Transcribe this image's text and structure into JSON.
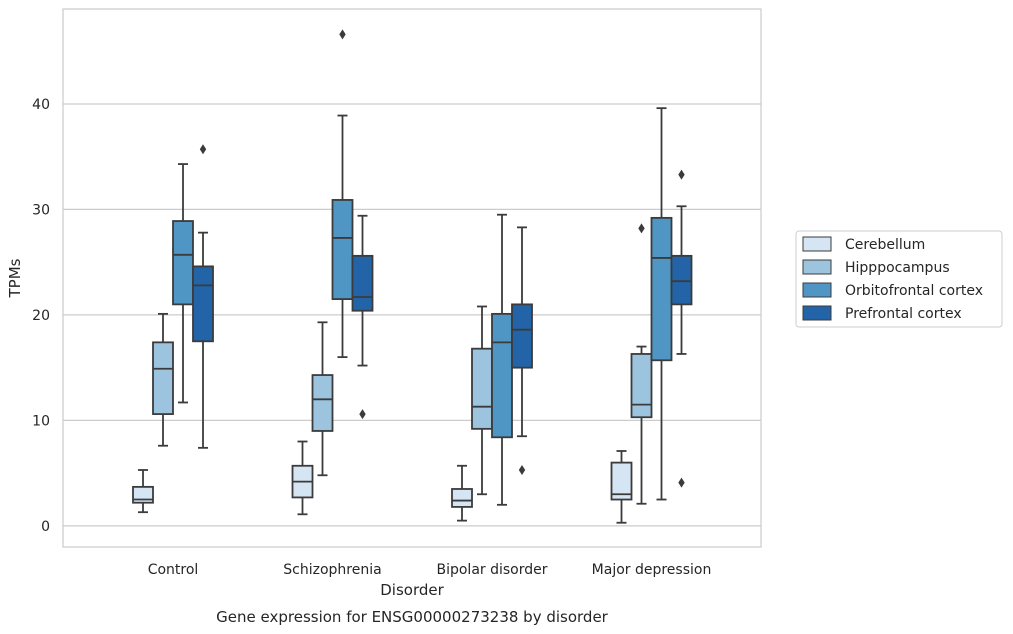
{
  "chart_data": {
    "type": "box",
    "caption": "Gene expression for ENSG00000273238 by disorder",
    "xlabel": "Disorder",
    "ylabel": "TPMs",
    "ylim": [
      -2,
      49
    ],
    "yticks": [
      0,
      10,
      20,
      30,
      40
    ],
    "grid": "horizontal",
    "legend_position": "right-outside",
    "categories": [
      "Control",
      "Schizophrenia",
      "Bipolar disorder",
      "Major depression"
    ],
    "series": [
      {
        "name": "Cerebellum",
        "color": "#d6e5f3",
        "boxes": [
          {
            "whisker_low": 1.3,
            "q1": 2.2,
            "median": 2.5,
            "q3": 3.7,
            "whisker_high": 5.3,
            "outliers": []
          },
          {
            "whisker_low": 1.1,
            "q1": 2.7,
            "median": 4.2,
            "q3": 5.7,
            "whisker_high": 8.0,
            "outliers": []
          },
          {
            "whisker_low": 0.5,
            "q1": 1.8,
            "median": 2.4,
            "q3": 3.5,
            "whisker_high": 5.7,
            "outliers": []
          },
          {
            "whisker_low": 0.3,
            "q1": 2.5,
            "median": 3.0,
            "q3": 6.0,
            "whisker_high": 7.1,
            "outliers": []
          }
        ]
      },
      {
        "name": "Hipppocampus",
        "color": "#9cc4de",
        "boxes": [
          {
            "whisker_low": 7.6,
            "q1": 10.6,
            "median": 14.9,
            "q3": 17.4,
            "whisker_high": 20.1,
            "outliers": []
          },
          {
            "whisker_low": 4.8,
            "q1": 9.0,
            "median": 12.0,
            "q3": 14.3,
            "whisker_high": 19.3,
            "outliers": []
          },
          {
            "whisker_low": 3.0,
            "q1": 9.2,
            "median": 11.3,
            "q3": 16.8,
            "whisker_high": 20.8,
            "outliers": []
          },
          {
            "whisker_low": 2.1,
            "q1": 10.3,
            "median": 11.5,
            "q3": 16.3,
            "whisker_high": 17.0,
            "outliers": [
              28.2
            ]
          }
        ]
      },
      {
        "name": "Orbitofrontal cortex",
        "color": "#5096c5",
        "boxes": [
          {
            "whisker_low": 11.7,
            "q1": 21.0,
            "median": 25.7,
            "q3": 28.9,
            "whisker_high": 34.3,
            "outliers": []
          },
          {
            "whisker_low": 16.0,
            "q1": 21.5,
            "median": 27.3,
            "q3": 30.9,
            "whisker_high": 38.9,
            "outliers": [
              46.6
            ]
          },
          {
            "whisker_low": 2.0,
            "q1": 8.4,
            "median": 17.4,
            "q3": 20.1,
            "whisker_high": 29.5,
            "outliers": []
          },
          {
            "whisker_low": 2.5,
            "q1": 15.7,
            "median": 25.4,
            "q3": 29.2,
            "whisker_high": 39.6,
            "outliers": []
          }
        ]
      },
      {
        "name": "Prefrontal cortex",
        "color": "#2364a8",
        "boxes": [
          {
            "whisker_low": 7.4,
            "q1": 17.5,
            "median": 22.8,
            "q3": 24.6,
            "whisker_high": 27.8,
            "outliers": [
              35.7
            ]
          },
          {
            "whisker_low": 15.2,
            "q1": 20.4,
            "median": 21.7,
            "q3": 25.6,
            "whisker_high": 29.4,
            "outliers": [
              10.6
            ]
          },
          {
            "whisker_low": 8.5,
            "q1": 15.0,
            "median": 18.6,
            "q3": 21.0,
            "whisker_high": 28.3,
            "outliers": [
              5.3
            ]
          },
          {
            "whisker_low": 16.3,
            "q1": 21.0,
            "median": 23.2,
            "q3": 25.6,
            "whisker_high": 30.3,
            "outliers": [
              33.3,
              4.1
            ]
          }
        ]
      }
    ]
  }
}
